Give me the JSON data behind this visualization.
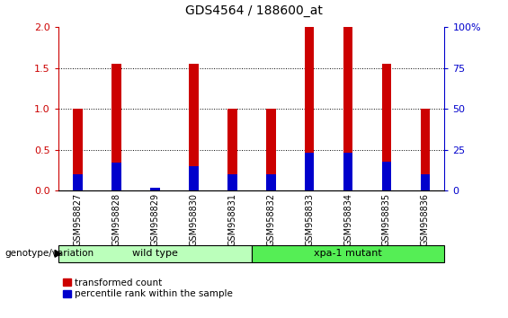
{
  "title": "GDS4564 / 188600_at",
  "samples": [
    "GSM958827",
    "GSM958828",
    "GSM958829",
    "GSM958830",
    "GSM958831",
    "GSM958832",
    "GSM958833",
    "GSM958834",
    "GSM958835",
    "GSM958836"
  ],
  "transformed_count": [
    1.0,
    1.55,
    0.0,
    1.55,
    1.0,
    1.0,
    2.0,
    2.0,
    1.55,
    1.0
  ],
  "percentile_rank_scaled": [
    0.2,
    0.34,
    0.04,
    0.3,
    0.2,
    0.2,
    0.46,
    0.46,
    0.36,
    0.2
  ],
  "ylim_left": [
    0,
    2
  ],
  "ylim_right": [
    0,
    100
  ],
  "yticks_left": [
    0,
    0.5,
    1.0,
    1.5,
    2.0
  ],
  "yticks_right": [
    0,
    25,
    50,
    75,
    100
  ],
  "groups": [
    {
      "label": "wild type",
      "start": 0,
      "end": 5,
      "color": "#bbffbb"
    },
    {
      "label": "xpa-1 mutant",
      "start": 5,
      "end": 10,
      "color": "#55ee55"
    }
  ],
  "bar_color_red": "#cc0000",
  "bar_color_blue": "#0000cc",
  "bar_width": 0.25,
  "background_color": "#ffffff",
  "legend_label_red": "transformed count",
  "legend_label_blue": "percentile rank within the sample",
  "genotype_label": "genotype/variation",
  "left_axis_color": "#cc0000",
  "right_axis_color": "#0000cc"
}
